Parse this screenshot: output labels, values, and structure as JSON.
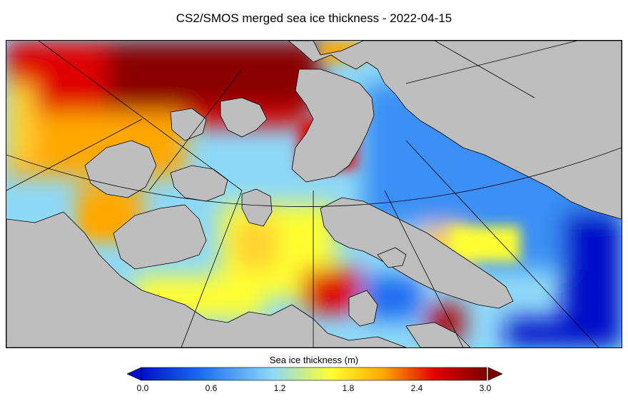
{
  "title": "CS2/SMOS merged sea ice thickness - 2022-04-15",
  "colorbar": {
    "label": "Sea ice thickness (m)",
    "ticks": [
      "0.0",
      "0.6",
      "1.2",
      "1.8",
      "2.4",
      "3.0"
    ],
    "min": 0.0,
    "max": 3.0,
    "colors": [
      "#0010c8",
      "#1a6cf0",
      "#8ed8f8",
      "#ffff30",
      "#ffa800",
      "#e00000",
      "#7a0000"
    ]
  },
  "map": {
    "land_color": "#bebebe",
    "coastline_color": "#000000",
    "graticule_color": "#000000"
  }
}
